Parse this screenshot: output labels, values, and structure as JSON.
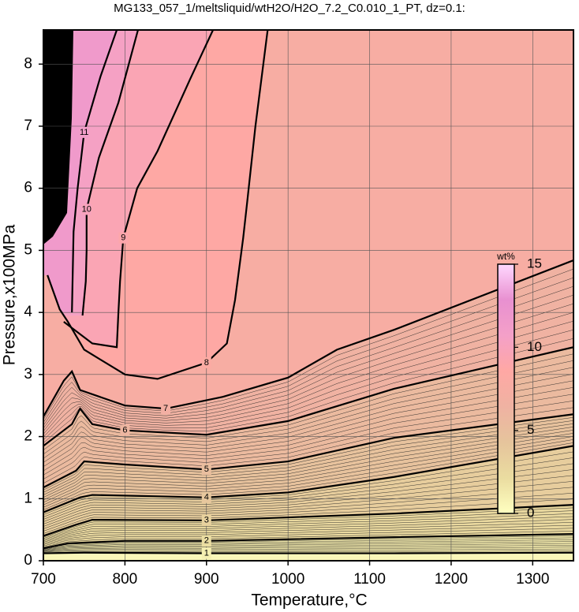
{
  "chart_data": {
    "type": "contour",
    "title": "MG133_057_1/meltsliquid/wtH2O/H2O_7.2_C0.010_1_PT, dz=0.1:",
    "x_label": "Temperature,°C",
    "y_label": "Pressure,x100MPa",
    "xlim": [
      700,
      1350
    ],
    "xticks": [
      700,
      800,
      900,
      1000,
      1100,
      1200,
      1300
    ],
    "ylim": [
      0,
      8.55
    ],
    "yticks": [
      0,
      1,
      2,
      3,
      4,
      5,
      6,
      7,
      8
    ],
    "grid": true,
    "colormap": [
      "#ffffc0",
      "#eadca0",
      "#e6c49c",
      "#efb2a2",
      "#ffa8a4",
      "#f4a0c8",
      "#e890d0",
      "#ffd8ff"
    ],
    "colorbar": {
      "label": "wt%",
      "zlim": [
        0,
        15
      ],
      "ticks": [
        0,
        5,
        10,
        15
      ]
    },
    "contours": [
      {
        "level": 1,
        "x": [
          700,
          750,
          900,
          1130,
          1350
        ],
        "y": [
          0.12,
          0.13,
          0.12,
          0.12,
          0.13
        ]
      },
      {
        "level": 2,
        "x": [
          700,
          730,
          800,
          900,
          1130,
          1350
        ],
        "y": [
          0.2,
          0.28,
          0.32,
          0.32,
          0.38,
          0.43
        ]
      },
      {
        "level": 3,
        "x": [
          700,
          740,
          760,
          900,
          1130,
          1350
        ],
        "y": [
          0.4,
          0.58,
          0.66,
          0.65,
          0.76,
          0.9
        ]
      },
      {
        "level": 4,
        "x": [
          700,
          745,
          760,
          900,
          1000,
          1130,
          1350
        ],
        "y": [
          0.78,
          1.02,
          1.06,
          1.02,
          1.1,
          1.35,
          1.85
        ]
      },
      {
        "level": 5,
        "x": [
          700,
          740,
          750,
          800,
          900,
          1000,
          1130,
          1350
        ],
        "y": [
          1.18,
          1.45,
          1.6,
          1.55,
          1.47,
          1.6,
          1.98,
          2.36
        ]
      },
      {
        "level": 6,
        "x": [
          700,
          735,
          745,
          760,
          800,
          900,
          1000,
          1130,
          1350
        ],
        "y": [
          1.85,
          2.2,
          2.45,
          2.2,
          2.1,
          2.03,
          2.25,
          2.77,
          3.44
        ]
      },
      {
        "level": 7,
        "x": [
          700,
          725,
          735,
          745,
          800,
          850,
          920,
          1000,
          1060,
          1130,
          1350
        ],
        "y": [
          2.32,
          2.9,
          3.05,
          2.75,
          2.5,
          2.45,
          2.64,
          2.95,
          3.4,
          3.72,
          4.84
        ]
      },
      {
        "level": 8,
        "x": [
          705,
          720,
          730,
          750,
          800,
          840,
          900,
          925,
          935,
          945,
          950,
          960,
          975
        ],
        "y": [
          4.6,
          4.05,
          3.85,
          3.4,
          3.0,
          2.93,
          3.19,
          3.5,
          4.2,
          5.2,
          5.79,
          7.0,
          8.55
        ]
      },
      {
        "level": 9,
        "x": [
          725,
          760,
          790,
          792,
          794,
          798,
          815,
          840,
          880,
          908
        ],
        "y": [
          3.85,
          3.5,
          3.44,
          4.0,
          4.5,
          5.2,
          6.0,
          6.6,
          7.76,
          8.55
        ]
      },
      {
        "level": 10,
        "x": [
          748,
          752,
          753,
          753,
          768,
          792,
          816
        ],
        "y": [
          3.95,
          4.5,
          5.0,
          5.66,
          6.49,
          7.38,
          8.55
        ]
      },
      {
        "level": 11,
        "x": [
          735,
          737,
          742,
          750,
          770,
          790
        ],
        "y": [
          4.0,
          5.3,
          6.0,
          6.9,
          7.8,
          8.55
        ]
      }
    ]
  }
}
